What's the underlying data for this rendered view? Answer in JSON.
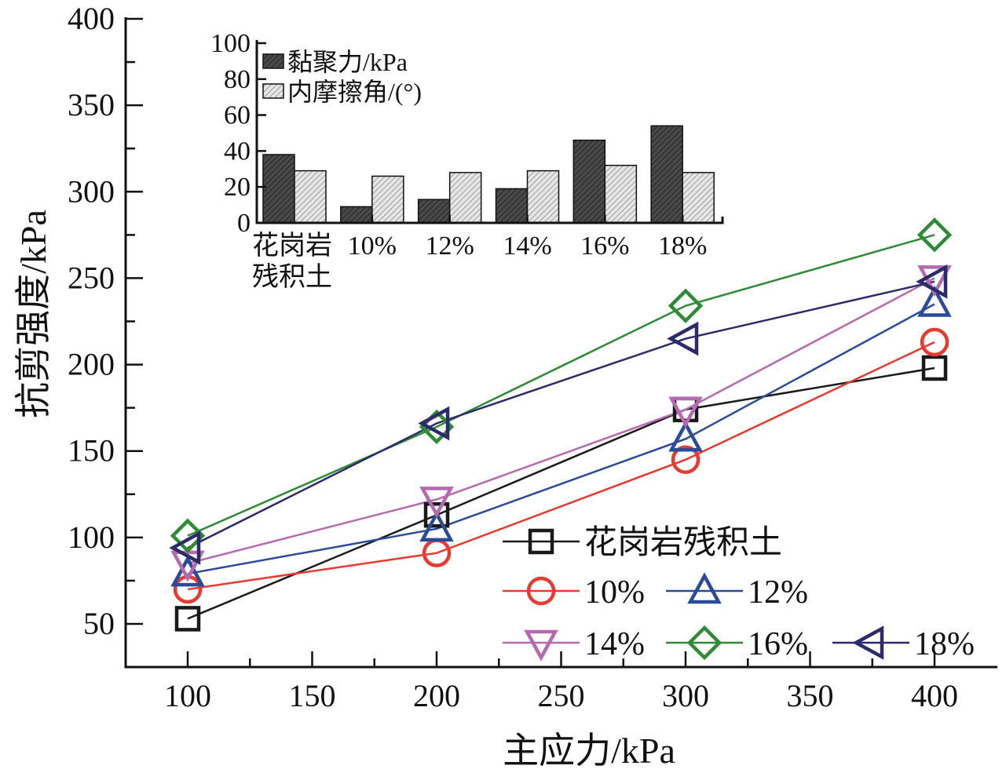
{
  "chart_data": [
    {
      "type": "line",
      "xlabel": "主应力/kPa",
      "ylabel": "抗剪强度/kPa",
      "xlim": [
        75,
        400
      ],
      "ylim": [
        30,
        400
      ],
      "xticks": [
        100,
        150,
        200,
        250,
        300,
        350,
        400
      ],
      "yticks": [
        50,
        100,
        150,
        200,
        250,
        300,
        350,
        400
      ],
      "x": [
        100,
        200,
        300,
        400
      ],
      "series": [
        {
          "name": "花岗岩残积土",
          "values": [
            53,
            113,
            174,
            198
          ],
          "color": "#1a1a1a",
          "marker": "square"
        },
        {
          "name": "10%",
          "values": [
            70,
            91,
            145,
            213
          ],
          "color": "#e53b30",
          "marker": "circle"
        },
        {
          "name": "12%",
          "values": [
            79,
            105,
            157,
            235
          ],
          "color": "#2a4a9a",
          "marker": "triangle-up"
        },
        {
          "name": "14%",
          "values": [
            85,
            122,
            174,
            250
          ],
          "color": "#b469b0",
          "marker": "triangle-down"
        },
        {
          "name": "16%",
          "values": [
            101,
            164,
            234,
            275
          ],
          "color": "#2e8b35",
          "marker": "diamond"
        },
        {
          "name": "18%",
          "values": [
            94,
            166,
            215,
            248
          ],
          "color": "#2b2a6b",
          "marker": "triangle-left"
        }
      ],
      "legend_position": "bottom-right"
    },
    {
      "type": "bar",
      "inset": true,
      "categories": [
        "花岗岩\n残积土",
        "10%",
        "12%",
        "14%",
        "16%",
        "18%"
      ],
      "ylim": [
        0,
        100
      ],
      "yticks": [
        0,
        20,
        40,
        60,
        80,
        100
      ],
      "series": [
        {
          "name": "黏聚力/kPa",
          "values": [
            38,
            9,
            13,
            19,
            46,
            54
          ],
          "color": "#555555",
          "pattern": "dense-hatch"
        },
        {
          "name": "内摩擦角/(°)",
          "values": [
            29,
            26,
            28,
            29,
            32,
            28
          ],
          "color": "#cccccc",
          "pattern": "light-hatch"
        }
      ],
      "legend_position": "top-left"
    }
  ]
}
